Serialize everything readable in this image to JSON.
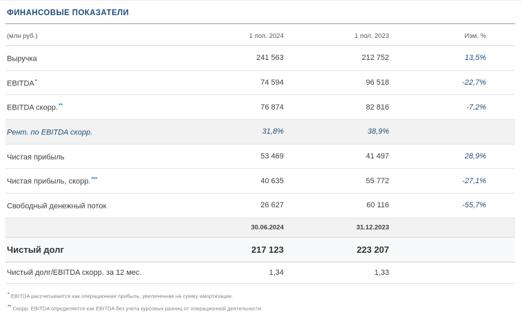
{
  "page": {
    "title": "ФИНАНСОВЫЕ ПОКАЗАТЕЛИ"
  },
  "table": {
    "headers": {
      "unit": "(млн руб.)",
      "period1": "1 пол. 2024",
      "period2": "1 пол. 2023",
      "change": "Изм. %"
    },
    "rows": [
      {
        "label": "Выручка",
        "sup": "",
        "v2024": "241 563",
        "v2023": "212 752",
        "change": "13,5%"
      },
      {
        "label": "EBITDA",
        "sup": "*",
        "v2024": "74 594",
        "v2023": "96 518",
        "change": "-22,7%"
      },
      {
        "label": "EBITDA скорр.",
        "sup": "**",
        "v2024": "76 874",
        "v2023": "82 816",
        "change": "-7,2%"
      },
      {
        "label": "Рент. по EBITDA скорр.",
        "sup": "",
        "v2024": "31,8%",
        "v2023": "38,9%",
        "change": ""
      },
      {
        "label": "Чистая прибыль",
        "sup": "",
        "v2024": "53 469",
        "v2023": "41 497",
        "change": "28,9%"
      },
      {
        "label": "Чистая прибыль, скорр.",
        "sup": "***",
        "v2024": "40 635",
        "v2023": "55 772",
        "change": "-27,1%"
      },
      {
        "label": "Свободный денежный поток",
        "sup": "",
        "v2024": "26 627",
        "v2023": "60 116",
        "change": "-55,7%"
      }
    ],
    "date_row": {
      "label": "",
      "v2024": "30.06.2024",
      "v2023": "31.12.2023",
      "change": ""
    },
    "debt_row": {
      "label": "Чистый долг",
      "v2024": "217 123",
      "v2023": "223 207",
      "change": ""
    },
    "ratio_row": {
      "label": "Чистый долг/EBITDA скорр. за 12 мес.",
      "v2024": "1,34",
      "v2023": "1,33",
      "change": ""
    }
  },
  "footnotes": [
    {
      "marker": "*",
      "text": "EBITDA рассчитывается как операционная прибыль, увеличенная на сумму амортизации."
    },
    {
      "marker": "**",
      "text": "Скорр. EBITDA определяется как EBITDA без учета курсовых разниц от операционной деятельности."
    }
  ],
  "colors": {
    "accent_blue": "#1f4e79",
    "marker_blue": "#2e75b6",
    "highlight_bg": "#f2f2f2"
  }
}
